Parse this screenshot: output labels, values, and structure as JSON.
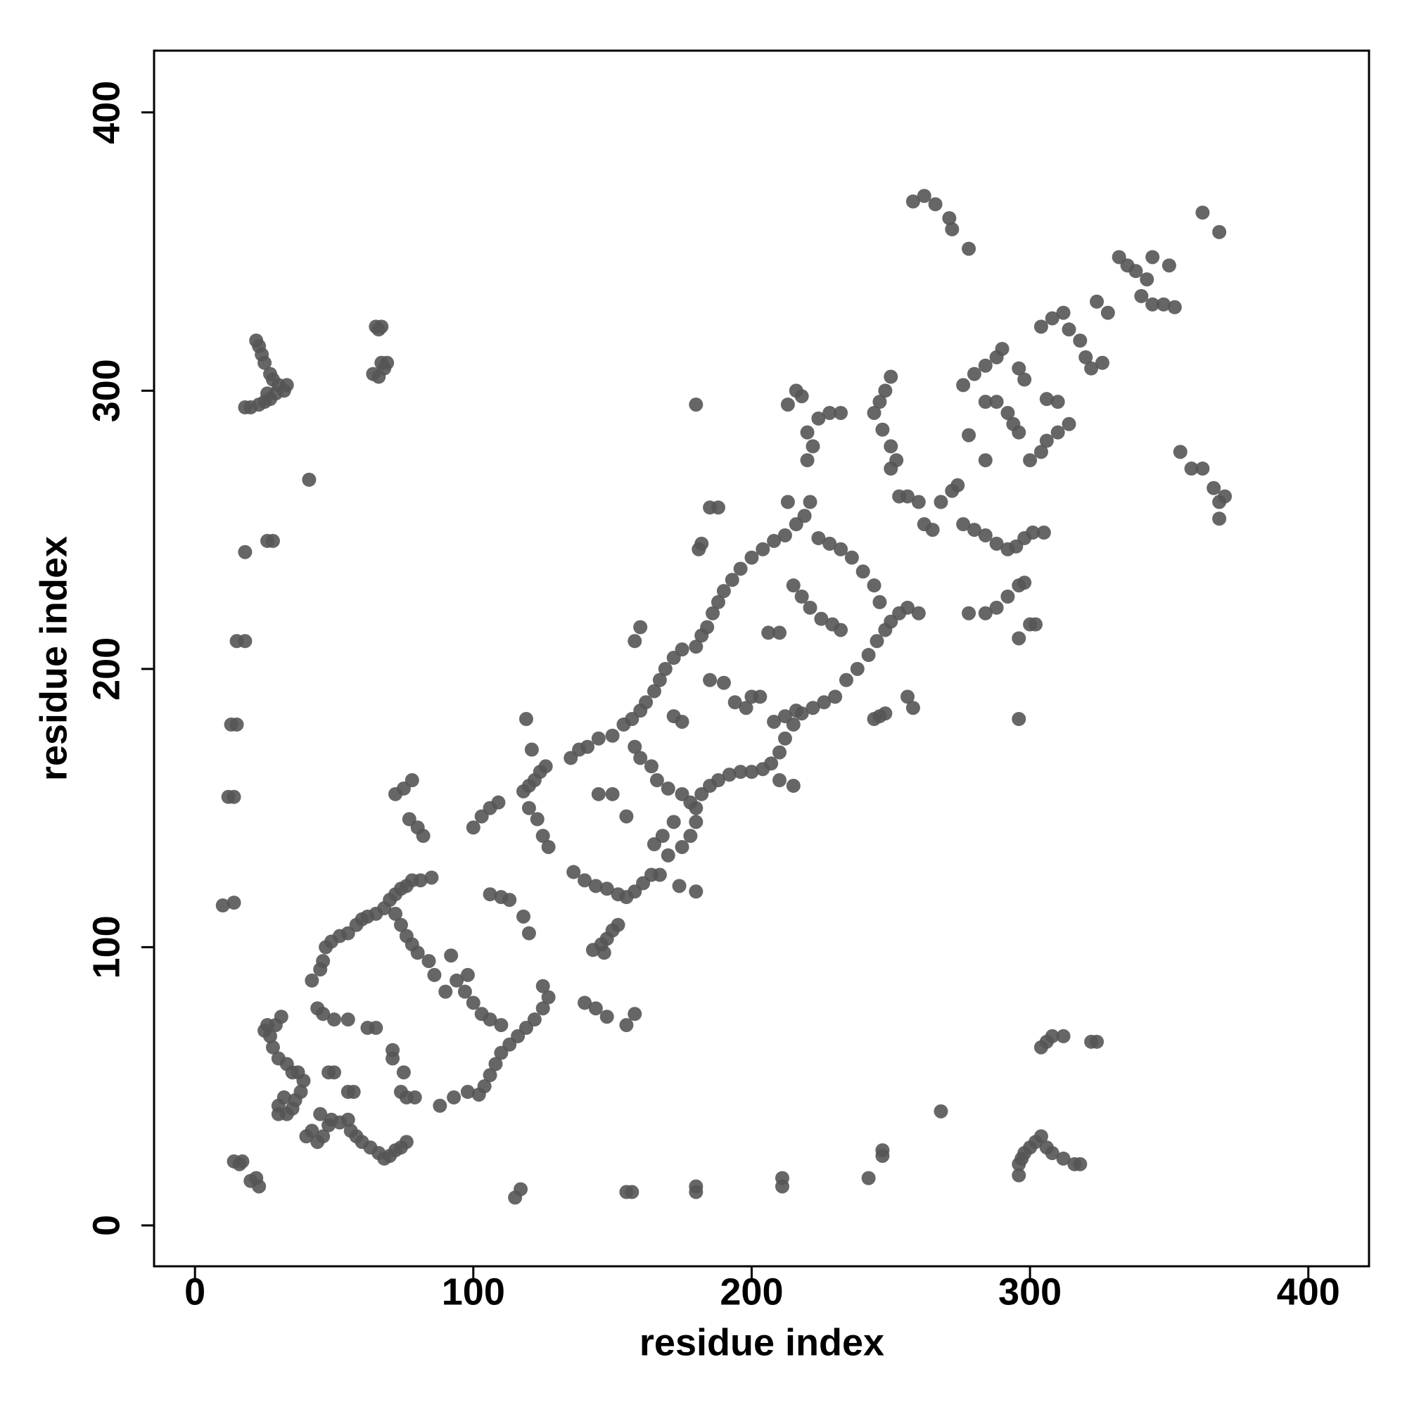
{
  "chart_data": {
    "type": "scatter",
    "xlabel": "residue index",
    "ylabel": "residue index",
    "color": "#555555",
    "xlim": [
      -14.7,
      421.8
    ],
    "ylim": [
      -14.7,
      422.2
    ],
    "xticks": [
      0,
      100,
      200,
      300,
      400
    ],
    "yticks": [
      0,
      100,
      200,
      300,
      400
    ],
    "grid": false,
    "x": [
      22,
      23,
      25,
      27,
      28,
      30,
      33,
      32,
      29,
      27,
      25,
      23,
      20,
      18,
      26,
      24,
      65,
      67,
      66,
      64,
      66,
      68,
      67,
      69,
      41,
      18,
      26,
      28,
      15,
      18,
      13,
      15,
      12,
      14,
      10,
      14,
      14,
      17,
      16,
      20,
      23,
      22,
      25,
      27,
      26,
      29,
      31,
      28,
      30,
      33,
      35,
      37,
      39,
      38,
      36,
      32,
      30,
      30,
      33,
      35,
      40,
      42,
      44,
      46,
      48,
      45,
      49,
      52,
      55,
      56,
      58,
      60,
      63,
      66,
      68,
      70,
      72,
      74,
      76,
      48,
      50,
      55,
      57,
      44,
      46,
      50,
      55,
      42,
      45,
      46,
      47,
      49,
      52,
      55,
      58,
      60,
      62,
      65,
      68,
      70,
      72,
      74,
      76,
      78,
      81,
      85,
      72,
      74,
      76,
      78,
      80,
      84,
      86,
      62,
      65,
      71,
      71,
      75,
      74,
      76,
      79,
      88,
      93,
      98,
      102,
      104,
      106,
      108,
      110,
      113,
      116,
      119,
      122,
      125,
      127,
      125,
      110,
      106,
      103,
      100,
      97,
      94,
      90,
      98,
      92,
      72,
      75,
      78,
      77,
      80,
      82,
      100,
      103,
      106,
      109,
      106,
      110,
      113,
      118,
      120,
      118,
      120,
      122,
      124,
      126,
      120,
      123,
      125,
      127,
      121,
      119,
      135,
      138,
      141,
      145,
      150,
      136,
      140,
      144,
      148,
      152,
      155,
      158,
      161,
      164,
      167,
      174,
      143,
      146,
      148,
      150,
      152,
      147,
      140,
      144,
      148,
      155,
      158,
      155,
      145,
      150,
      154,
      157,
      160,
      162,
      165,
      167,
      169,
      172,
      175,
      180,
      158,
      160,
      164,
      166,
      170,
      175,
      178,
      180,
      172,
      168,
      165,
      170,
      175,
      178,
      180,
      182,
      185,
      188,
      192,
      196,
      200,
      204,
      207,
      210,
      212,
      215,
      218,
      222,
      226,
      230,
      234,
      238,
      242,
      245,
      248,
      250,
      253,
      256,
      260,
      182,
      184,
      186,
      188,
      190,
      193,
      196,
      200,
      204,
      208,
      212,
      216,
      219,
      221,
      224,
      228,
      232,
      236,
      240,
      244,
      246,
      185,
      190,
      194,
      198,
      200,
      203,
      206,
      210,
      215,
      218,
      221,
      225,
      229,
      232,
      216,
      212,
      208,
      215,
      213,
      182,
      181,
      185,
      188,
      180,
      180,
      210,
      175,
      172,
      160,
      158,
      213,
      216,
      218,
      220,
      222,
      224,
      228,
      232,
      220,
      250,
      248,
      246,
      244,
      247,
      250,
      252,
      250,
      253,
      256,
      260,
      262,
      265,
      268,
      272,
      274,
      276,
      280,
      284,
      288,
      292,
      295,
      298,
      301,
      305,
      258,
      262,
      266,
      271,
      272,
      278,
      276,
      280,
      284,
      288,
      290,
      284,
      288,
      292,
      294,
      296,
      296,
      298,
      300,
      304,
      306,
      310,
      314,
      306,
      310,
      304,
      308,
      312,
      314,
      318,
      320,
      322,
      326,
      324,
      328,
      332,
      335,
      338,
      342,
      344,
      350,
      340,
      344,
      348,
      352,
      354,
      358,
      362,
      366,
      368,
      370,
      368,
      362,
      368,
      278,
      284,
      288,
      292,
      296,
      298,
      300,
      302,
      296,
      296,
      278,
      284,
      246,
      248,
      244,
      256,
      258,
      296,
      296,
      297,
      298,
      300,
      302,
      304,
      306,
      308,
      312,
      316,
      318,
      304,
      306,
      308,
      312,
      322,
      324,
      268,
      242,
      247,
      247,
      211,
      211,
      180,
      180,
      155,
      157,
      117,
      115
    ],
    "values": [
      318,
      316,
      310,
      306,
      304,
      302,
      302,
      300,
      299,
      297,
      296,
      295,
      294,
      294,
      299,
      313,
      323,
      323,
      322,
      306,
      305,
      308,
      310,
      310,
      268,
      242,
      246,
      246,
      210,
      210,
      180,
      180,
      154,
      154,
      115,
      116,
      23,
      23,
      22,
      16,
      14,
      17,
      70,
      68,
      72,
      72,
      75,
      64,
      60,
      58,
      55,
      55,
      52,
      48,
      45,
      46,
      43,
      40,
      40,
      42,
      32,
      34,
      30,
      32,
      36,
      40,
      38,
      37,
      38,
      34,
      32,
      30,
      28,
      26,
      24,
      25,
      27,
      28,
      30,
      55,
      55,
      48,
      48,
      78,
      76,
      74,
      74,
      88,
      92,
      95,
      100,
      102,
      104,
      105,
      108,
      110,
      111,
      112,
      114,
      117,
      119,
      121,
      122,
      124,
      124,
      125,
      112,
      108,
      104,
      101,
      98,
      95,
      90,
      71,
      71,
      63,
      60,
      55,
      48,
      46,
      46,
      43,
      46,
      48,
      47,
      50,
      54,
      58,
      62,
      65,
      68,
      71,
      74,
      78,
      82,
      86,
      72,
      74,
      76,
      80,
      84,
      88,
      84,
      90,
      97,
      155,
      157,
      160,
      146,
      143,
      140,
      143,
      147,
      150,
      152,
      119,
      118,
      117,
      111,
      105,
      156,
      158,
      160,
      163,
      165,
      150,
      146,
      140,
      136,
      171,
      182,
      168,
      171,
      172,
      175,
      176,
      127,
      124,
      122,
      121,
      119,
      118,
      120,
      123,
      126,
      126,
      122,
      99,
      101,
      103,
      106,
      108,
      98,
      80,
      78,
      75,
      72,
      76,
      147,
      155,
      155,
      180,
      182,
      185,
      188,
      192,
      196,
      200,
      204,
      207,
      208,
      172,
      168,
      165,
      160,
      157,
      155,
      152,
      150,
      145,
      140,
      137,
      133,
      136,
      140,
      145,
      155,
      158,
      160,
      162,
      163,
      163,
      164,
      166,
      170,
      175,
      180,
      184,
      186,
      188,
      190,
      196,
      200,
      205,
      210,
      214,
      217,
      220,
      222,
      220,
      212,
      215,
      220,
      224,
      228,
      232,
      236,
      240,
      243,
      246,
      248,
      252,
      255,
      260,
      247,
      245,
      243,
      240,
      235,
      230,
      224,
      196,
      195,
      188,
      186,
      190,
      190,
      213,
      213,
      230,
      226,
      222,
      218,
      216,
      214,
      185,
      183,
      181,
      158,
      260,
      245,
      243,
      258,
      258,
      295,
      120,
      160,
      181,
      183,
      215,
      210,
      295,
      300,
      298,
      285,
      280,
      290,
      292,
      292,
      275,
      305,
      300,
      296,
      292,
      286,
      280,
      275,
      272,
      262,
      262,
      260,
      252,
      250,
      260,
      264,
      266,
      252,
      250,
      248,
      245,
      243,
      244,
      247,
      249,
      249,
      368,
      370,
      367,
      362,
      358,
      351,
      302,
      306,
      309,
      312,
      315,
      296,
      296,
      292,
      288,
      285,
      308,
      304,
      275,
      278,
      282,
      285,
      288,
      297,
      296,
      323,
      326,
      328,
      322,
      318,
      312,
      308,
      310,
      332,
      328,
      348,
      345,
      343,
      340,
      348,
      345,
      334,
      331,
      331,
      330,
      278,
      272,
      272,
      265,
      260,
      262,
      254,
      364,
      357,
      220,
      220,
      222,
      226,
      230,
      231,
      216,
      216,
      211,
      182,
      284,
      275,
      183,
      184,
      182,
      190,
      186,
      18,
      22,
      24,
      26,
      28,
      30,
      32,
      28,
      26,
      24,
      22,
      22,
      64,
      66,
      68,
      68,
      66,
      66,
      41,
      17,
      25,
      27,
      17,
      14,
      14,
      12,
      12,
      12,
      13,
      10
    ]
  }
}
